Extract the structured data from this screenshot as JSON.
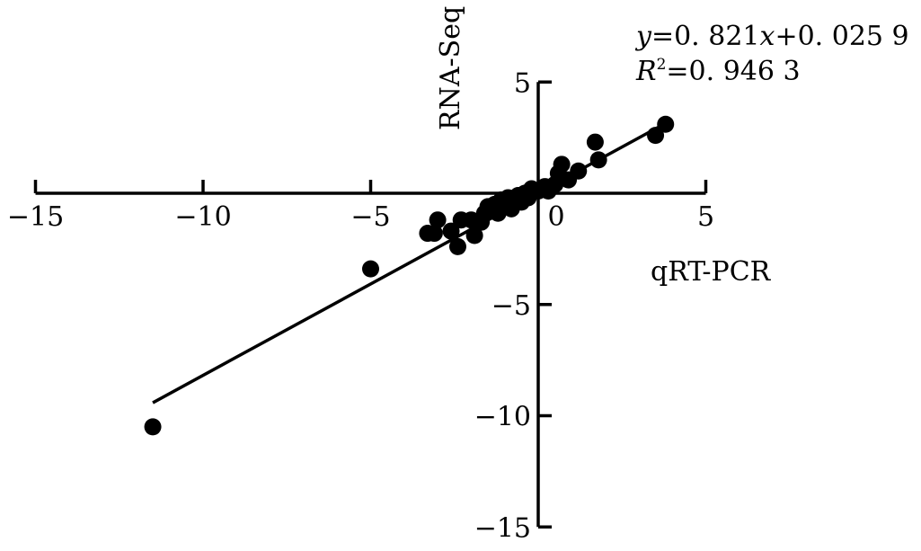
{
  "chart_data": {
    "type": "scatter",
    "xlabel": "qRT-PCR",
    "ylabel": "RNA-Seq",
    "xlim": [
      -15,
      5
    ],
    "ylim": [
      -15,
      5
    ],
    "xticks": [
      -15,
      -10,
      -5,
      0,
      5
    ],
    "yticks": [
      5,
      -5,
      -10,
      -15
    ],
    "xtick_labels": [
      "−15",
      "−10",
      "−5",
      "0",
      "5"
    ],
    "ytick_labels": [
      "5",
      "−5",
      "−10",
      "−15"
    ],
    "grid": false,
    "equation": {
      "line1_var": "y",
      "line1_mid": "=0. 821",
      "line1_var2": "x",
      "line1_rest": "+0. 025 9",
      "line2_var": "R",
      "line2_sup": "2",
      "line2_rest": "=0. 946 3"
    },
    "fit": {
      "slope": 0.821,
      "intercept": 0.0259,
      "x_from": -11.5,
      "x_to": 3.8
    },
    "points": [
      {
        "x": -11.5,
        "y": -10.5
      },
      {
        "x": -5.0,
        "y": -3.4
      },
      {
        "x": -3.3,
        "y": -1.8
      },
      {
        "x": -3.0,
        "y": -1.2
      },
      {
        "x": -3.1,
        "y": -1.8
      },
      {
        "x": -2.6,
        "y": -1.7
      },
      {
        "x": -2.4,
        "y": -2.4
      },
      {
        "x": -2.3,
        "y": -1.2
      },
      {
        "x": -2.0,
        "y": -1.2
      },
      {
        "x": -1.9,
        "y": -1.9
      },
      {
        "x": -1.7,
        "y": -1.3
      },
      {
        "x": -1.6,
        "y": -0.9
      },
      {
        "x": -1.5,
        "y": -0.6
      },
      {
        "x": -1.4,
        "y": -0.8
      },
      {
        "x": -1.3,
        "y": -0.5
      },
      {
        "x": -1.2,
        "y": -0.9
      },
      {
        "x": -1.1,
        "y": -0.3
      },
      {
        "x": -1.0,
        "y": -0.6
      },
      {
        "x": -0.9,
        "y": -0.2
      },
      {
        "x": -0.8,
        "y": -0.7
      },
      {
        "x": -0.7,
        "y": -0.3
      },
      {
        "x": -0.6,
        "y": -0.1
      },
      {
        "x": -0.5,
        "y": -0.4
      },
      {
        "x": -0.4,
        "y": 0.0
      },
      {
        "x": -0.3,
        "y": -0.2
      },
      {
        "x": -0.2,
        "y": 0.2
      },
      {
        "x": -0.1,
        "y": 0.1
      },
      {
        "x": 0.0,
        "y": 0.1
      },
      {
        "x": 0.2,
        "y": 0.3
      },
      {
        "x": 0.3,
        "y": 0.1
      },
      {
        "x": 0.5,
        "y": 0.4
      },
      {
        "x": 0.6,
        "y": 0.9
      },
      {
        "x": 0.7,
        "y": 1.3
      },
      {
        "x": 0.9,
        "y": 0.6
      },
      {
        "x": 1.2,
        "y": 1.0
      },
      {
        "x": 1.7,
        "y": 2.3
      },
      {
        "x": 1.8,
        "y": 1.5
      },
      {
        "x": 3.5,
        "y": 2.6
      },
      {
        "x": 3.8,
        "y": 3.1
      }
    ]
  }
}
